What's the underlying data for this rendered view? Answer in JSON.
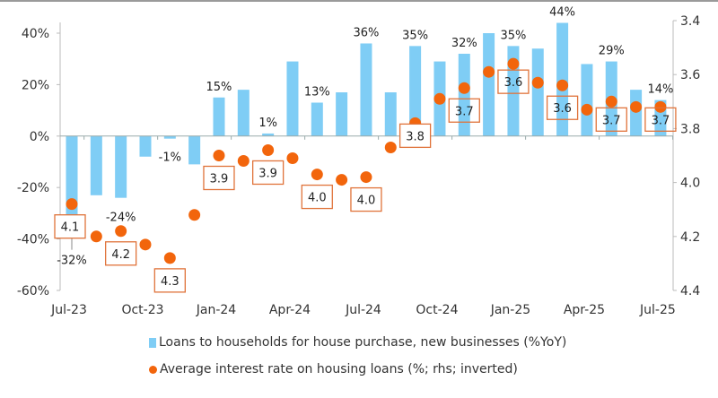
{
  "chart_data": {
    "type": "bar+scatter",
    "categories": [
      "Jul-23",
      "Aug-23",
      "Sep-23",
      "Oct-23",
      "Nov-23",
      "Dec-23",
      "Jan-24",
      "Feb-24",
      "Mar-24",
      "Apr-24",
      "May-24",
      "Jun-24",
      "Jul-24",
      "Aug-24",
      "Sep-24",
      "Oct-24",
      "Nov-24",
      "Dec-24",
      "Jan-25",
      "Feb-25",
      "Mar-25",
      "Apr-25",
      "May-25",
      "Jun-25",
      "Jul-25"
    ],
    "x_tick_labels": [
      "Jul-23",
      "Oct-23",
      "Jan-24",
      "Apr-24",
      "Jul-24",
      "Oct-24",
      "Jan-25",
      "Apr-25",
      "Jul-25"
    ],
    "left_axis": {
      "ylim": [
        -60,
        40
      ],
      "ticks": [
        "40%",
        "20%",
        "0%",
        "-20%",
        "-40%",
        "-60%"
      ],
      "tick_values": [
        40,
        20,
        0,
        -20,
        -40,
        -60
      ]
    },
    "right_axis": {
      "ylim": [
        3.4,
        4.4
      ],
      "inverted": true,
      "ticks": [
        "3.4",
        "3.6",
        "3.8",
        "4.0",
        "4.2",
        "4.4"
      ],
      "tick_values": [
        3.4,
        3.6,
        3.8,
        4.0,
        4.2,
        4.4
      ]
    },
    "grid": false,
    "legend_position": "bottom",
    "series": [
      {
        "name": "Loans to households for house purchase, new businesses (%YoY)",
        "type": "bar",
        "axis": "left",
        "color": "#7fcdf5",
        "values": [
          -32,
          -23,
          -24,
          -8,
          -1,
          -11,
          15,
          18,
          1,
          29,
          13,
          17,
          36,
          17,
          35,
          29,
          32,
          40,
          35,
          34,
          44,
          28,
          29,
          18,
          14
        ],
        "data_labels": [
          "-32%",
          null,
          "-24%",
          null,
          "-1%",
          null,
          "15%",
          null,
          "1%",
          null,
          "13%",
          null,
          "36%",
          null,
          "35%",
          null,
          "32%",
          null,
          "35%",
          null,
          "44%",
          null,
          "29%",
          null,
          "14%"
        ]
      },
      {
        "name": "Average interest rate on housing loans (%; rhs; inverted)",
        "type": "scatter",
        "axis": "right",
        "color": "#f2650c",
        "values": [
          4.08,
          4.2,
          4.18,
          4.23,
          4.28,
          4.12,
          3.9,
          3.92,
          3.88,
          3.91,
          3.97,
          3.99,
          3.98,
          3.87,
          3.78,
          3.69,
          3.65,
          3.59,
          3.56,
          3.63,
          3.64,
          3.73,
          3.7,
          3.72,
          3.72
        ],
        "data_labels": [
          "4.1",
          null,
          "4.2",
          null,
          "4.3",
          null,
          "3.9",
          null,
          "3.9",
          null,
          "4.0",
          null,
          "4.0",
          null,
          "3.8",
          null,
          "3.7",
          null,
          "3.6",
          null,
          "3.6",
          null,
          "3.7",
          null,
          "3.7"
        ]
      }
    ]
  }
}
